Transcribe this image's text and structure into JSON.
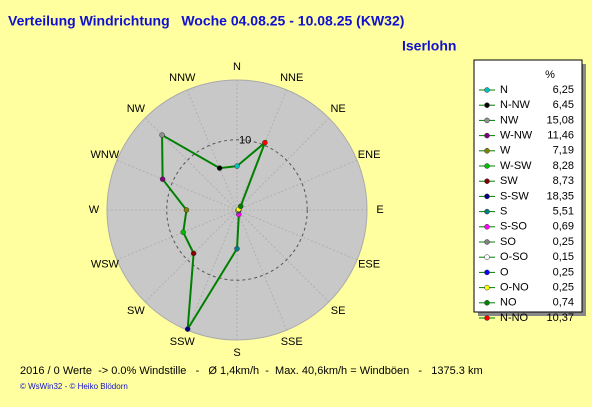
{
  "chart_data": {
    "type": "radar",
    "title": "Verteilung Windrichtung   Woche 04.08.25 - 10.08.25 (KW32)",
    "subtitle": "Iserlohn",
    "axis_labels": [
      "N",
      "NNE",
      "NE",
      "ENE",
      "E",
      "ESE",
      "SE",
      "SSE",
      "S",
      "SSW",
      "SW",
      "WSW",
      "W",
      "WNW",
      "NW",
      "NNW"
    ],
    "legend_header": "%",
    "footer": "2016 / 0 Werte  -> 0.0% Windstille   -   Ø 1,4km/h  -  Max. 40,6km/h = Windböen   -   1375.3 km",
    "credit": "© WsWin32  -  © Heiko Blödorn",
    "rlim": [
      0,
      18.5
    ],
    "rticks": [
      10
    ],
    "line_color": "#008000",
    "categories": [
      "N",
      "N-NW",
      "NW",
      "W-NW",
      "W",
      "W-SW",
      "SW",
      "S-SW",
      "S",
      "S-SO",
      "SO",
      "O-SO",
      "O",
      "O-NO",
      "NO",
      "N-NO"
    ],
    "values": [
      6.25,
      6.45,
      15.08,
      11.46,
      7.19,
      8.28,
      8.73,
      18.35,
      5.51,
      0.69,
      0.25,
      0.15,
      0.25,
      0.25,
      0.74,
      10.37
    ],
    "value_labels": [
      "6,25",
      "6,45",
      "15,08",
      "11,46",
      "7,19",
      "8,28",
      "8,73",
      "18,35",
      "5,51",
      "0,69",
      "0,25",
      "0,15",
      "0,25",
      "0,25",
      "0,74",
      "10,37"
    ],
    "colors": [
      "#00c0c0",
      "#000000",
      "#909090",
      "#800080",
      "#808000",
      "#00c000",
      "#800000",
      "#000080",
      "#008080",
      "#ff00ff",
      "#808080",
      "#ffffff",
      "#0000ff",
      "#ffff00",
      "#008000",
      "#ff0000"
    ]
  }
}
